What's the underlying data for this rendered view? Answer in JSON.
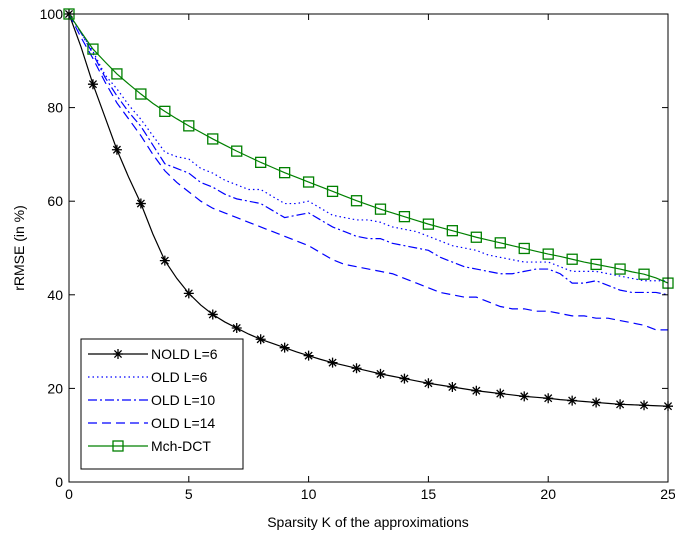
{
  "chart_data": {
    "type": "line",
    "title": "",
    "xlabel": "Sparsity K of the approximations",
    "ylabel": "rRMSE (in %)",
    "xlim": [
      0,
      25
    ],
    "ylim": [
      0,
      100
    ],
    "xticks": [
      0,
      5,
      10,
      15,
      20,
      25
    ],
    "yticks": [
      0,
      20,
      40,
      60,
      80,
      100
    ],
    "grid": false,
    "legend_position": "bottom-left",
    "x": [
      0,
      0.5,
      1,
      1.5,
      2,
      2.5,
      3,
      3.5,
      4,
      4.5,
      5,
      5.5,
      6,
      6.5,
      7,
      7.5,
      8,
      8.5,
      9,
      9.5,
      10,
      10.5,
      11,
      11.5,
      12,
      12.5,
      13,
      13.5,
      14,
      14.5,
      15,
      15.5,
      16,
      16.5,
      17,
      17.5,
      18,
      18.5,
      19,
      19.5,
      20,
      20.5,
      21,
      21.5,
      22,
      22.5,
      23,
      23.5,
      24,
      24.5,
      25
    ],
    "series": [
      {
        "name": "NOLD L=6",
        "color": "#000000",
        "dash": "solid",
        "marker": "star",
        "values": [
          100,
          93,
          85,
          78,
          71,
          65,
          59.5,
          53,
          47.3,
          43.5,
          40.3,
          37.8,
          35.8,
          34.2,
          32.9,
          31.6,
          30.5,
          29.6,
          28.7,
          27.8,
          27,
          26.2,
          25.5,
          24.9,
          24.3,
          23.7,
          23.1,
          22.6,
          22.1,
          21.6,
          21.1,
          20.7,
          20.3,
          19.9,
          19.5,
          19.2,
          18.9,
          18.6,
          18.3,
          18.1,
          17.9,
          17.6,
          17.4,
          17.2,
          17,
          16.8,
          16.6,
          16.5,
          16.4,
          16.3,
          16.2
        ]
      },
      {
        "name": "OLD L=6",
        "color": "#0000ff",
        "dash": "dotted",
        "marker": "none",
        "values": [
          100,
          96,
          92,
          87,
          84,
          80.5,
          77.5,
          74,
          70.5,
          69.5,
          69,
          67,
          66,
          64.5,
          63.5,
          62.5,
          62.5,
          61,
          59.5,
          59.5,
          60,
          58.5,
          57,
          56.5,
          56,
          56,
          55.5,
          54.5,
          54,
          53.5,
          52.5,
          51.5,
          50.5,
          50,
          49.5,
          48.5,
          48,
          47.5,
          47,
          47,
          47,
          46,
          45,
          45,
          45,
          44.5,
          44,
          43.5,
          43,
          43,
          43
        ]
      },
      {
        "name": "OLD L=10",
        "color": "#0000ff",
        "dash": "dashdot",
        "marker": "none",
        "values": [
          100,
          96,
          91.5,
          86.5,
          82.5,
          79,
          76,
          72,
          68,
          67,
          66,
          64,
          63,
          61.5,
          60.5,
          60,
          59.5,
          58,
          56.5,
          57,
          57.5,
          56,
          54.5,
          53.5,
          52.5,
          52,
          52,
          51,
          50.5,
          50,
          49.5,
          48,
          47,
          46,
          45.5,
          45,
          44.5,
          44.5,
          45,
          45.5,
          45.5,
          44.5,
          42.5,
          42.5,
          43,
          42,
          41,
          40.5,
          40.5,
          40.5,
          40
        ]
      },
      {
        "name": "OLD L=14",
        "color": "#0000ff",
        "dash": "dashed",
        "marker": "none",
        "values": [
          100,
          95,
          90.5,
          85.5,
          81,
          77.5,
          74,
          70,
          66.5,
          64,
          62,
          60,
          58.5,
          57.5,
          56.5,
          55.5,
          54.5,
          53.5,
          52.5,
          51.5,
          50.5,
          49,
          47.5,
          46.5,
          46,
          45.5,
          45,
          44.5,
          43.5,
          42.5,
          41.5,
          40.5,
          40,
          39.5,
          39.5,
          38.5,
          37.5,
          37,
          37,
          36.5,
          36.5,
          36,
          35.5,
          35.5,
          35,
          35,
          34.5,
          34,
          33.5,
          32.5,
          32.5
        ]
      },
      {
        "name": "Mch-DCT",
        "color": "#008000",
        "dash": "solid",
        "marker": "square",
        "values": [
          100,
          96.2,
          92.5,
          89.8,
          87.2,
          85,
          82.9,
          80.9,
          79.2,
          77.6,
          76.1,
          74.7,
          73.3,
          72,
          70.7,
          69.5,
          68.3,
          67.2,
          66.1,
          65.1,
          64.1,
          63.1,
          62.1,
          61.1,
          60.1,
          59.2,
          58.3,
          57.5,
          56.7,
          55.9,
          55.1,
          54.4,
          53.7,
          53,
          52.3,
          51.7,
          51.1,
          50.5,
          49.9,
          49.3,
          48.7,
          48.2,
          47.6,
          47,
          46.5,
          46,
          45.5,
          44.9,
          44.4,
          43.6,
          42.5
        ]
      }
    ]
  }
}
